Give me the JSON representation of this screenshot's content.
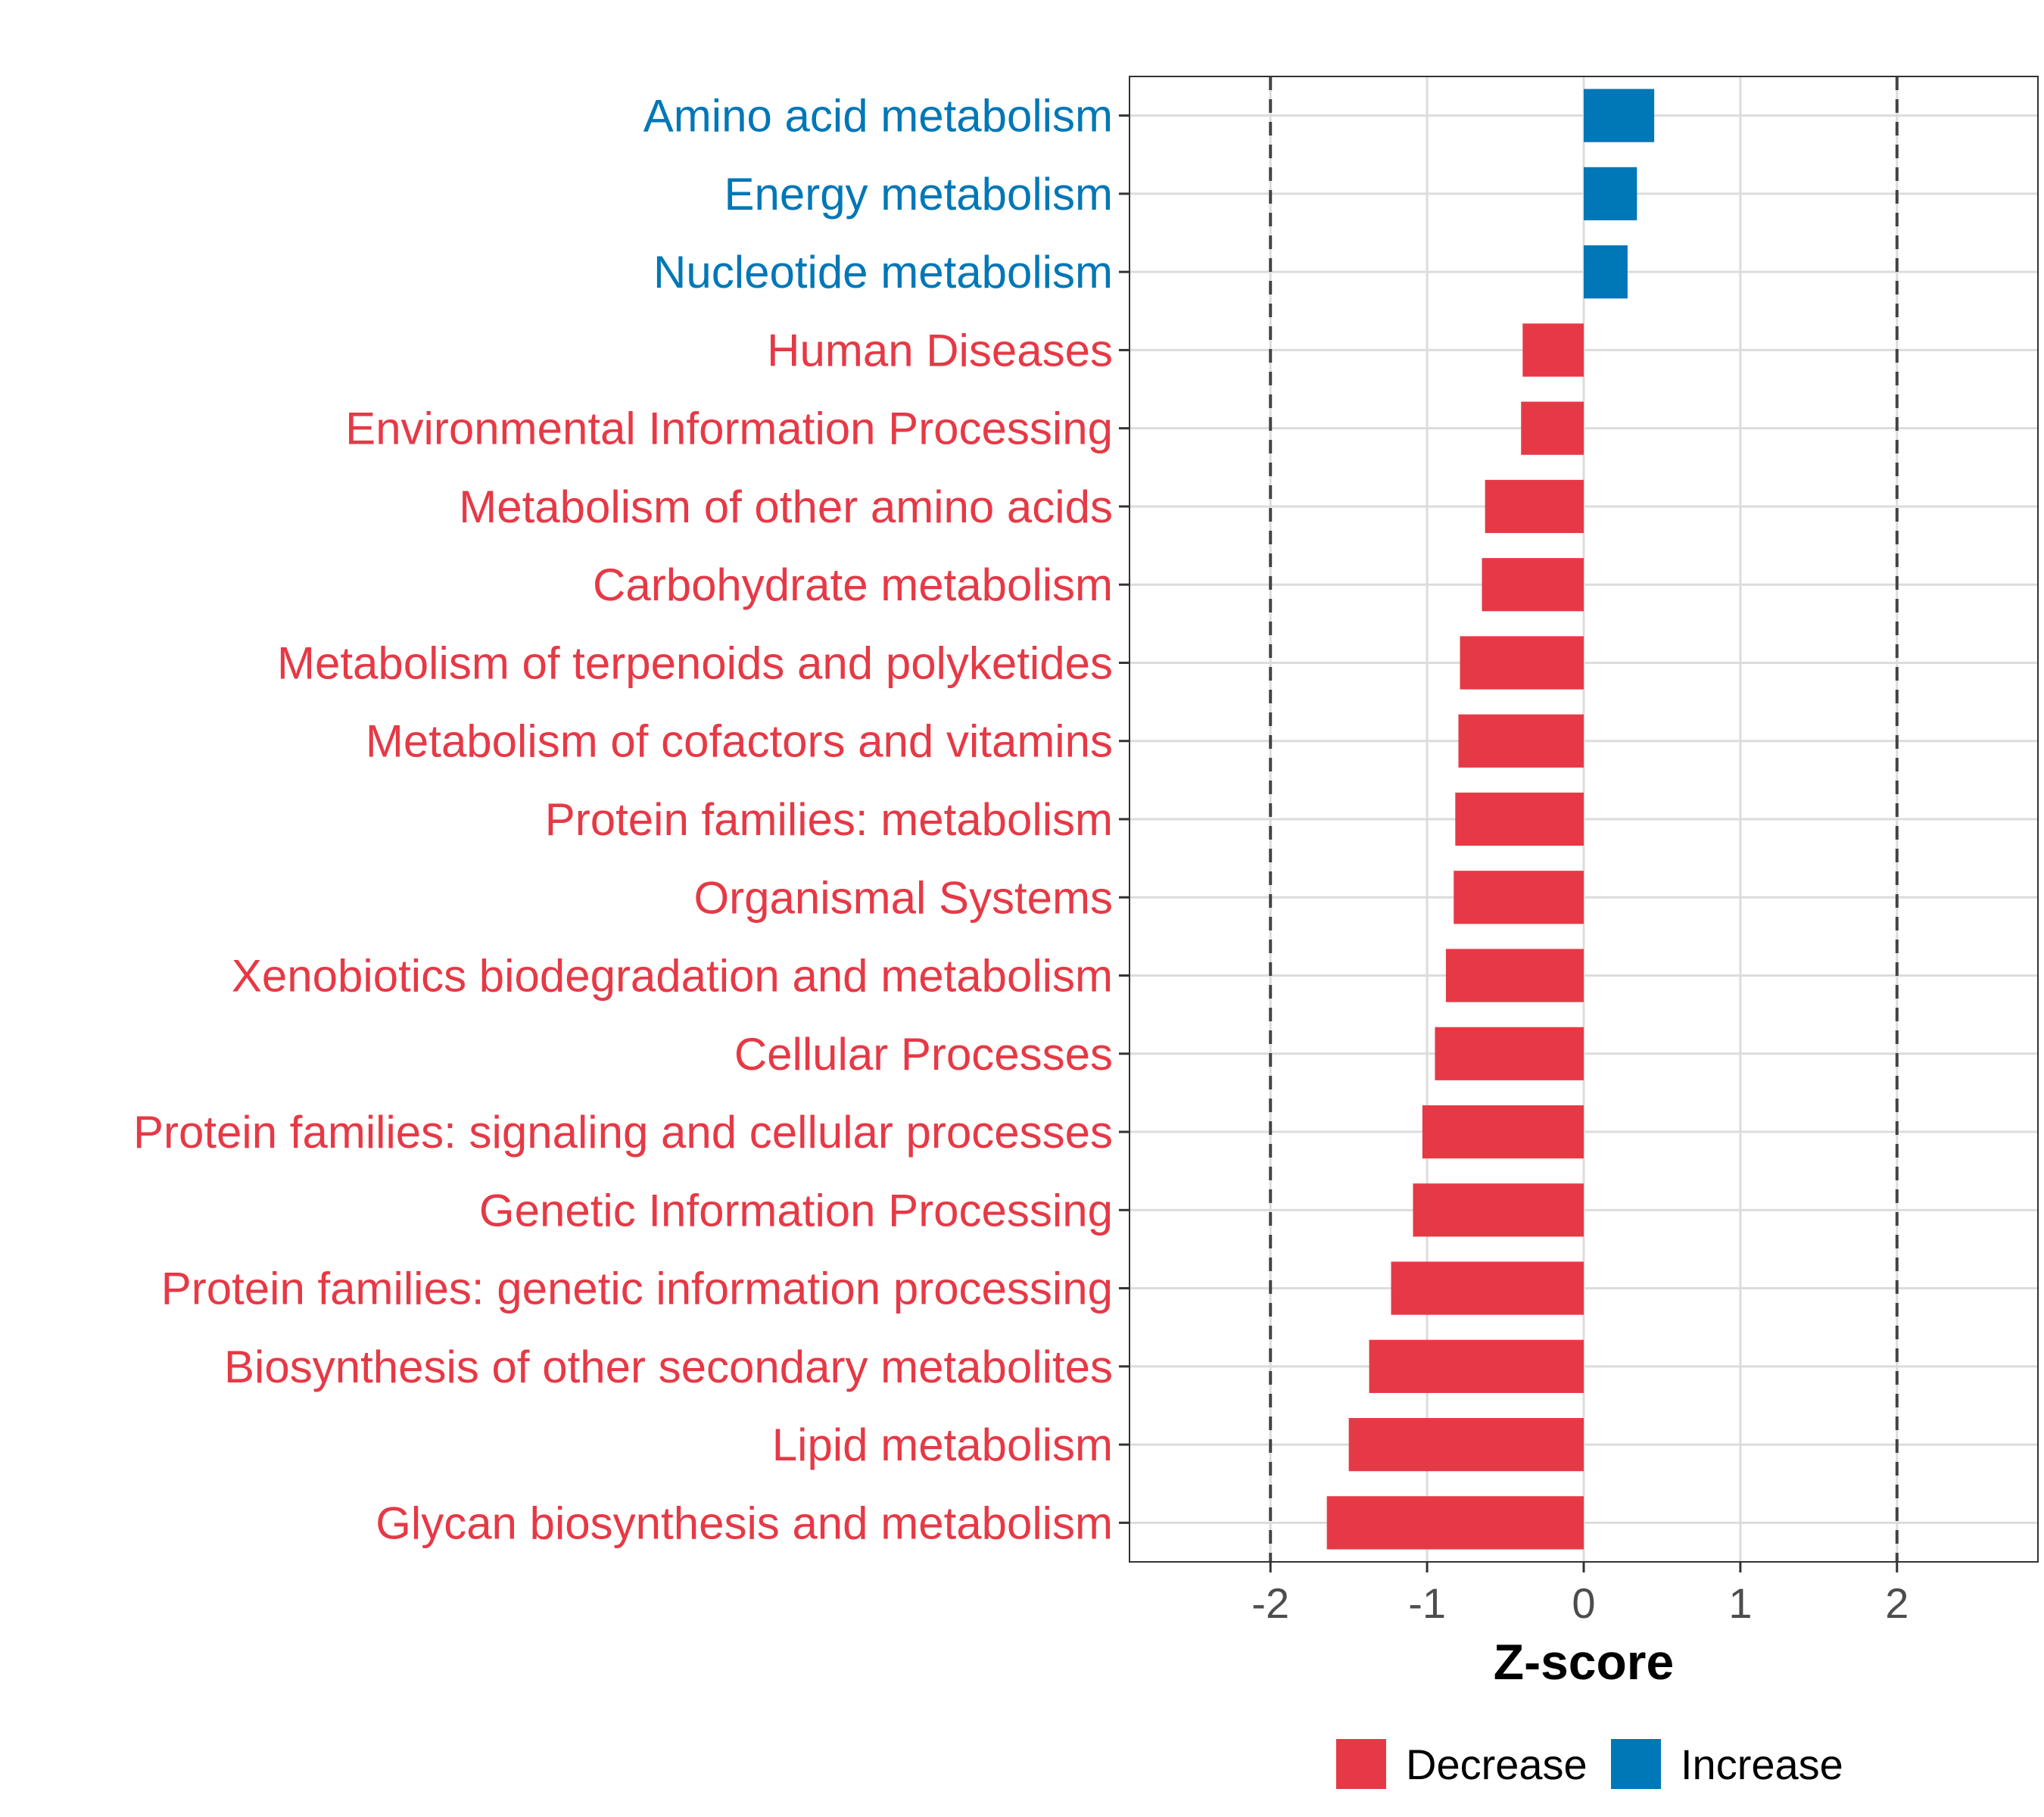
{
  "chart_data": {
    "type": "bar",
    "orientation": "horizontal",
    "xlabel": "Z-score",
    "xlim": [
      -2.9,
      2.9
    ],
    "xticks": [
      -2,
      -1,
      0,
      1,
      2
    ],
    "xtick_labels": [
      "-2",
      "-1",
      "0",
      "1",
      "2"
    ],
    "reference_lines": [
      -2,
      2
    ],
    "grid": true,
    "legend_position": "bottom",
    "legend": [
      {
        "name": "Decrease",
        "color": "#e63946"
      },
      {
        "name": "Increase",
        "color": "#0077b6"
      }
    ],
    "categories": [
      "Amino acid metabolism",
      "Energy metabolism",
      "Nucleotide metabolism",
      "Human Diseases",
      "Environmental Information Processing",
      "Metabolism of other amino acids",
      "Carbohydrate metabolism",
      "Metabolism of terpenoids and polyketides",
      "Metabolism of cofactors and vitamins",
      "Protein families: metabolism",
      "Organismal Systems",
      "Xenobiotics biodegradation and metabolism",
      "Cellular Processes",
      "Protein families: signaling and cellular processes",
      "Genetic Information Processing",
      "Protein families: genetic information processing",
      "Biosynthesis of other secondary metabolites",
      "Lipid metabolism",
      "Glycan biosynthesis and metabolism"
    ],
    "values": [
      0.45,
      0.34,
      0.28,
      -0.39,
      -0.4,
      -0.63,
      -0.65,
      -0.79,
      -0.8,
      -0.82,
      -0.83,
      -0.88,
      -0.95,
      -1.03,
      -1.09,
      -1.23,
      -1.37,
      -1.5,
      -1.64
    ],
    "groups": [
      "Increase",
      "Increase",
      "Increase",
      "Decrease",
      "Decrease",
      "Decrease",
      "Decrease",
      "Decrease",
      "Decrease",
      "Decrease",
      "Decrease",
      "Decrease",
      "Decrease",
      "Decrease",
      "Decrease",
      "Decrease",
      "Decrease",
      "Decrease",
      "Decrease"
    ]
  }
}
